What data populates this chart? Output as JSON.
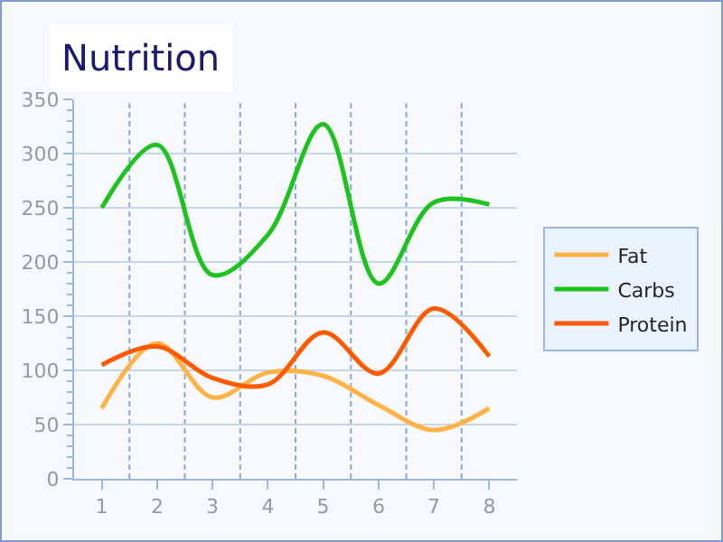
{
  "chart_data": {
    "type": "line",
    "title": "Nutrition",
    "categories": [
      "1",
      "2",
      "3",
      "4",
      "5",
      "6",
      "7",
      "8"
    ],
    "series": [
      {
        "name": "Fat",
        "color": "#ffb347",
        "values": [
          65,
          125,
          75,
          98,
          95,
          68,
          45,
          65
        ]
      },
      {
        "name": "Carbs",
        "color": "#1ec31e",
        "values": [
          250,
          308,
          188,
          225,
          327,
          180,
          255,
          253
        ]
      },
      {
        "name": "Protein",
        "color": "#ff5a00",
        "values": [
          105,
          122,
          93,
          87,
          135,
          97,
          157,
          113
        ]
      }
    ],
    "ylim": [
      0,
      350
    ],
    "yticks": [
      0,
      50,
      100,
      150,
      200,
      250,
      300,
      350
    ],
    "grid": true,
    "legend": "right",
    "marker": "none",
    "line_style": "solid"
  }
}
